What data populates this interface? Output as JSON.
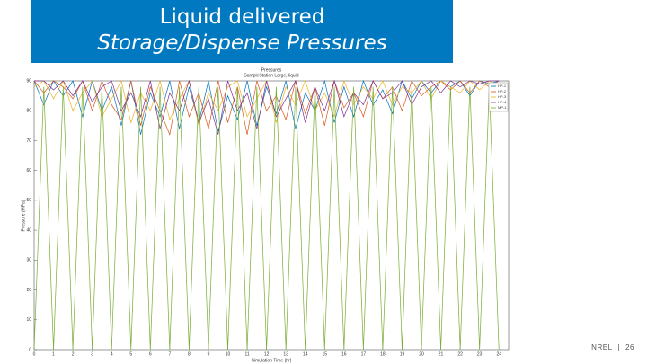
{
  "slide": {
    "title": "Liquid delivered",
    "subtitle": "Storage/Dispense Pressures",
    "footer": "NREL",
    "sep": "|",
    "page": "26"
  },
  "chart_data": {
    "type": "line",
    "title": "Pressures",
    "subtitle": "SampleStation Large, liquid",
    "x_label": "Simulation Time (hr)",
    "y_label": "Pressure (MPa)",
    "xlim": [
      0,
      24.5
    ],
    "ylim": [
      0,
      90
    ],
    "xticks": [
      0,
      1,
      2,
      3,
      4,
      5,
      6,
      7,
      8,
      9,
      10,
      11,
      12,
      13,
      14,
      15,
      16,
      17,
      18,
      19,
      20,
      21,
      22,
      23,
      24
    ],
    "yticks": [
      0,
      10,
      20,
      30,
      40,
      50,
      60,
      70,
      80,
      90
    ],
    "legend": "upper right",
    "x": [
      0,
      0.5,
      1,
      1.5,
      2,
      2.5,
      3,
      3.5,
      4,
      4.5,
      5,
      5.5,
      6,
      6.5,
      7,
      7.5,
      8,
      8.5,
      9,
      9.5,
      10,
      10.5,
      11,
      11.5,
      12,
      12.5,
      13,
      13.5,
      14,
      14.5,
      15,
      15.5,
      16,
      16.5,
      17,
      17.5,
      18,
      18.5,
      19,
      19.5,
      20,
      20.5,
      21,
      21.5,
      22,
      22.5,
      23,
      23.5,
      24
    ],
    "series": [
      {
        "name": "HP-1",
        "color": "#0072bd",
        "values": [
          90,
          82,
          90,
          85,
          90,
          78,
          90,
          80,
          88,
          75,
          90,
          72,
          86,
          78,
          90,
          74,
          88,
          76,
          90,
          73,
          85,
          77,
          90,
          75,
          88,
          79,
          90,
          74,
          86,
          80,
          90,
          76,
          88,
          78,
          90,
          82,
          87,
          79,
          90,
          84,
          90,
          86,
          90,
          88,
          90,
          85,
          90,
          89,
          90
        ]
      },
      {
        "name": "HP-2",
        "color": "#d95319",
        "values": [
          90,
          86,
          90,
          88,
          84,
          90,
          80,
          90,
          82,
          77,
          90,
          75,
          88,
          80,
          72,
          90,
          78,
          86,
          74,
          90,
          76,
          88,
          72,
          90,
          80,
          85,
          77,
          90,
          79,
          88,
          75,
          90,
          81,
          86,
          78,
          90,
          84,
          88,
          80,
          90,
          85,
          88,
          90,
          87,
          90,
          86,
          90,
          88,
          90
        ]
      },
      {
        "name": "HP-3",
        "color": "#edb120",
        "values": [
          88,
          90,
          84,
          90,
          80,
          86,
          90,
          78,
          84,
          90,
          76,
          86,
          80,
          90,
          77,
          84,
          90,
          75,
          86,
          80,
          88,
          90,
          78,
          84,
          90,
          76,
          88,
          82,
          90,
          80,
          86,
          78,
          90,
          82,
          88,
          84,
          90,
          82,
          88,
          86,
          90,
          84,
          90,
          88,
          86,
          90,
          87,
          90,
          88
        ]
      },
      {
        "name": "HP-4",
        "color": "#7e2f8e",
        "values": [
          90,
          90,
          87,
          90,
          85,
          90,
          83,
          88,
          90,
          80,
          86,
          78,
          90,
          74,
          86,
          80,
          90,
          76,
          84,
          72,
          90,
          80,
          86,
          74,
          90,
          78,
          84,
          90,
          76,
          88,
          80,
          90,
          78,
          86,
          82,
          90,
          84,
          86,
          90,
          82,
          88,
          90,
          86,
          90,
          88,
          90,
          89,
          90,
          90
        ]
      },
      {
        "name": "MP-1",
        "color": "#77ac30",
        "values": [
          0,
          88,
          0,
          88,
          0,
          88,
          0,
          88,
          0,
          88,
          0,
          88,
          0,
          88,
          0,
          88,
          0,
          88,
          0,
          88,
          0,
          88,
          0,
          88,
          0,
          88,
          0,
          88,
          0,
          88,
          0,
          88,
          0,
          88,
          0,
          88,
          0,
          88,
          0,
          88,
          0,
          88,
          0,
          88,
          0,
          88,
          0,
          88,
          0
        ]
      }
    ]
  }
}
